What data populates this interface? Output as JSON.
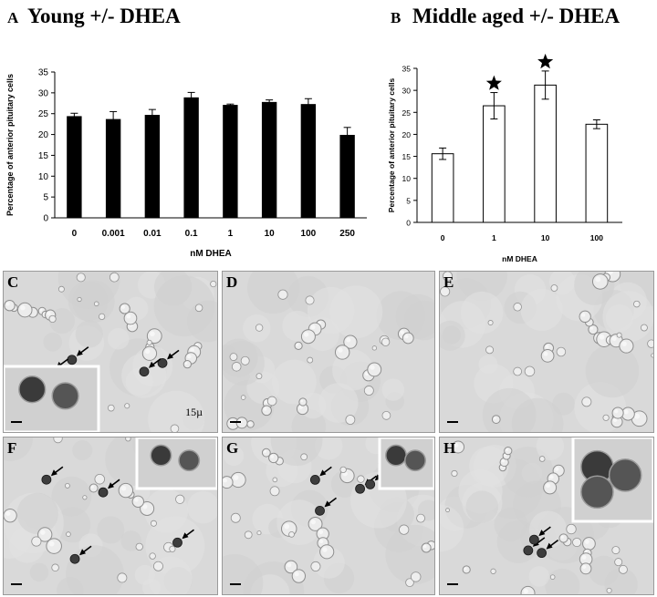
{
  "panels": {
    "a_letter": "A",
    "a_title": "Young +/- DHEA",
    "b_letter": "B",
    "b_title": "Middle aged +/- DHEA"
  },
  "chart_data": [
    {
      "type": "bar",
      "panel": "A",
      "title": "Young +/- DHEA",
      "xlabel": "nM DHEA",
      "ylabel": "Percentage of anterior pituitary cells",
      "categories": [
        "0",
        "0.001",
        "0.01",
        "0.1",
        "1",
        "10",
        "100",
        "250"
      ],
      "values": [
        24.3,
        23.6,
        24.6,
        28.8,
        27.0,
        27.7,
        27.2,
        19.8
      ],
      "errors": [
        0.8,
        1.9,
        1.4,
        1.3,
        0.3,
        0.6,
        1.4,
        1.9
      ],
      "ylim": [
        0,
        35
      ],
      "yticks": [
        0,
        5,
        10,
        15,
        20,
        25,
        30,
        35
      ],
      "bar_color": "#000000",
      "grid": false
    },
    {
      "type": "bar",
      "panel": "B",
      "title": "Middle aged +/- DHEA",
      "xlabel": "nM DHEA",
      "ylabel": "Percentage of anterior pituitary cells",
      "categories": [
        "0",
        "1",
        "10",
        "100"
      ],
      "values": [
        15.6,
        26.5,
        31.2,
        22.3
      ],
      "errors": [
        1.3,
        3.0,
        3.2,
        1.0
      ],
      "significant": [
        false,
        true,
        true,
        false
      ],
      "ylim": [
        0,
        35
      ],
      "yticks": [
        0,
        5,
        10,
        15,
        20,
        25,
        30,
        35
      ],
      "bar_color": "#ffffff",
      "grid": false
    }
  ],
  "micrographs": [
    {
      "letter": "C",
      "scale_label": "15µ",
      "has_inset": true
    },
    {
      "letter": "D",
      "scale_label": "",
      "has_inset": false
    },
    {
      "letter": "E",
      "scale_label": "",
      "has_inset": false
    },
    {
      "letter": "F",
      "scale_label": "",
      "has_inset": true
    },
    {
      "letter": "G",
      "scale_label": "",
      "has_inset": true
    },
    {
      "letter": "H",
      "scale_label": "",
      "has_inset": true
    }
  ]
}
